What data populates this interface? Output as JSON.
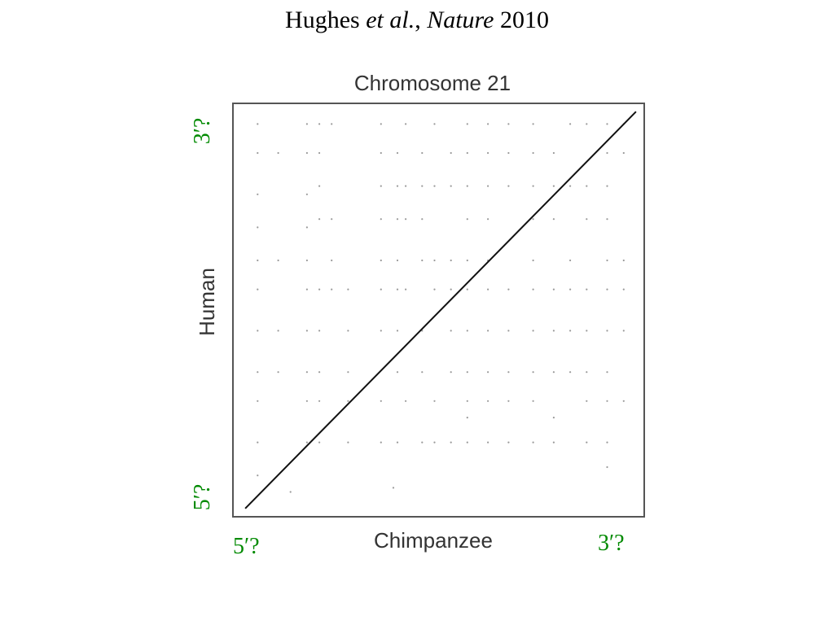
{
  "slide": {
    "author": "Hughes",
    "etal": "et al.",
    "comma": ",",
    "journal": "Nature",
    "year": "2010"
  },
  "end_labels": {
    "y_top": "3′?",
    "y_bottom": "5′?",
    "x_left": "5′?",
    "x_right": "3′?"
  },
  "colors": {
    "axis": "#555555",
    "line": "#111111",
    "dots": "#9a9a9a",
    "green": "#008a00"
  },
  "chart_data": {
    "type": "scatter",
    "title": "Chromosome 21",
    "xlabel": "Chimpanzee",
    "ylabel": "Human",
    "grid": false,
    "xlim": [
      0,
      1
    ],
    "ylim": [
      0,
      1
    ],
    "series": [
      {
        "values": [
          [
            0.03,
            0.02
          ],
          [
            0.98,
            0.98
          ]
        ]
      }
    ],
    "scatter_points": [
      [
        0.06,
        0.95
      ],
      [
        0.06,
        0.88
      ],
      [
        0.06,
        0.78
      ],
      [
        0.06,
        0.7
      ],
      [
        0.06,
        0.62
      ],
      [
        0.06,
        0.55
      ],
      [
        0.06,
        0.45
      ],
      [
        0.06,
        0.35
      ],
      [
        0.06,
        0.28
      ],
      [
        0.06,
        0.18
      ],
      [
        0.06,
        0.1
      ],
      [
        0.11,
        0.88
      ],
      [
        0.11,
        0.62
      ],
      [
        0.11,
        0.45
      ],
      [
        0.11,
        0.35
      ],
      [
        0.18,
        0.95
      ],
      [
        0.18,
        0.88
      ],
      [
        0.18,
        0.78
      ],
      [
        0.18,
        0.7
      ],
      [
        0.18,
        0.62
      ],
      [
        0.18,
        0.55
      ],
      [
        0.18,
        0.45
      ],
      [
        0.18,
        0.35
      ],
      [
        0.18,
        0.28
      ],
      [
        0.18,
        0.18
      ],
      [
        0.21,
        0.95
      ],
      [
        0.21,
        0.88
      ],
      [
        0.21,
        0.8
      ],
      [
        0.21,
        0.72
      ],
      [
        0.21,
        0.55
      ],
      [
        0.21,
        0.45
      ],
      [
        0.21,
        0.35
      ],
      [
        0.21,
        0.28
      ],
      [
        0.21,
        0.18
      ],
      [
        0.24,
        0.95
      ],
      [
        0.24,
        0.55
      ],
      [
        0.24,
        0.72
      ],
      [
        0.24,
        0.62
      ],
      [
        0.28,
        0.55
      ],
      [
        0.28,
        0.45
      ],
      [
        0.28,
        0.35
      ],
      [
        0.28,
        0.28
      ],
      [
        0.28,
        0.18
      ],
      [
        0.36,
        0.95
      ],
      [
        0.36,
        0.88
      ],
      [
        0.36,
        0.8
      ],
      [
        0.36,
        0.72
      ],
      [
        0.36,
        0.62
      ],
      [
        0.36,
        0.55
      ],
      [
        0.36,
        0.45
      ],
      [
        0.36,
        0.28
      ],
      [
        0.36,
        0.18
      ],
      [
        0.4,
        0.88
      ],
      [
        0.4,
        0.8
      ],
      [
        0.4,
        0.72
      ],
      [
        0.4,
        0.62
      ],
      [
        0.4,
        0.55
      ],
      [
        0.4,
        0.45
      ],
      [
        0.4,
        0.35
      ],
      [
        0.4,
        0.18
      ],
      [
        0.42,
        0.95
      ],
      [
        0.42,
        0.8
      ],
      [
        0.42,
        0.72
      ],
      [
        0.42,
        0.55
      ],
      [
        0.42,
        0.28
      ],
      [
        0.46,
        0.88
      ],
      [
        0.46,
        0.8
      ],
      [
        0.46,
        0.72
      ],
      [
        0.46,
        0.62
      ],
      [
        0.46,
        0.45
      ],
      [
        0.46,
        0.35
      ],
      [
        0.46,
        0.18
      ],
      [
        0.49,
        0.95
      ],
      [
        0.49,
        0.8
      ],
      [
        0.49,
        0.62
      ],
      [
        0.49,
        0.55
      ],
      [
        0.49,
        0.28
      ],
      [
        0.49,
        0.18
      ],
      [
        0.53,
        0.88
      ],
      [
        0.53,
        0.8
      ],
      [
        0.53,
        0.62
      ],
      [
        0.53,
        0.55
      ],
      [
        0.53,
        0.45
      ],
      [
        0.53,
        0.35
      ],
      [
        0.53,
        0.18
      ],
      [
        0.57,
        0.95
      ],
      [
        0.57,
        0.88
      ],
      [
        0.57,
        0.8
      ],
      [
        0.57,
        0.72
      ],
      [
        0.57,
        0.62
      ],
      [
        0.57,
        0.55
      ],
      [
        0.57,
        0.45
      ],
      [
        0.57,
        0.35
      ],
      [
        0.57,
        0.28
      ],
      [
        0.57,
        0.24
      ],
      [
        0.57,
        0.18
      ],
      [
        0.62,
        0.95
      ],
      [
        0.62,
        0.88
      ],
      [
        0.62,
        0.8
      ],
      [
        0.62,
        0.72
      ],
      [
        0.62,
        0.62
      ],
      [
        0.62,
        0.55
      ],
      [
        0.62,
        0.45
      ],
      [
        0.62,
        0.35
      ],
      [
        0.62,
        0.28
      ],
      [
        0.62,
        0.18
      ],
      [
        0.67,
        0.95
      ],
      [
        0.67,
        0.88
      ],
      [
        0.67,
        0.8
      ],
      [
        0.67,
        0.55
      ],
      [
        0.67,
        0.45
      ],
      [
        0.67,
        0.35
      ],
      [
        0.67,
        0.28
      ],
      [
        0.67,
        0.18
      ],
      [
        0.73,
        0.95
      ],
      [
        0.73,
        0.88
      ],
      [
        0.73,
        0.8
      ],
      [
        0.73,
        0.72
      ],
      [
        0.73,
        0.62
      ],
      [
        0.73,
        0.55
      ],
      [
        0.73,
        0.45
      ],
      [
        0.73,
        0.35
      ],
      [
        0.73,
        0.28
      ],
      [
        0.73,
        0.18
      ],
      [
        0.78,
        0.88
      ],
      [
        0.78,
        0.8
      ],
      [
        0.78,
        0.72
      ],
      [
        0.78,
        0.55
      ],
      [
        0.78,
        0.45
      ],
      [
        0.78,
        0.35
      ],
      [
        0.78,
        0.24
      ],
      [
        0.78,
        0.18
      ],
      [
        0.82,
        0.95
      ],
      [
        0.82,
        0.8
      ],
      [
        0.82,
        0.62
      ],
      [
        0.82,
        0.55
      ],
      [
        0.82,
        0.45
      ],
      [
        0.82,
        0.35
      ],
      [
        0.86,
        0.95
      ],
      [
        0.86,
        0.8
      ],
      [
        0.86,
        0.72
      ],
      [
        0.86,
        0.55
      ],
      [
        0.86,
        0.45
      ],
      [
        0.86,
        0.35
      ],
      [
        0.86,
        0.28
      ],
      [
        0.86,
        0.18
      ],
      [
        0.91,
        0.95
      ],
      [
        0.91,
        0.88
      ],
      [
        0.91,
        0.8
      ],
      [
        0.91,
        0.72
      ],
      [
        0.91,
        0.62
      ],
      [
        0.91,
        0.55
      ],
      [
        0.91,
        0.45
      ],
      [
        0.91,
        0.35
      ],
      [
        0.91,
        0.28
      ],
      [
        0.91,
        0.18
      ],
      [
        0.91,
        0.12
      ],
      [
        0.95,
        0.95
      ],
      [
        0.95,
        0.88
      ],
      [
        0.95,
        0.62
      ],
      [
        0.95,
        0.55
      ],
      [
        0.95,
        0.45
      ],
      [
        0.95,
        0.28
      ],
      [
        0.39,
        0.07
      ],
      [
        0.14,
        0.06
      ]
    ]
  }
}
